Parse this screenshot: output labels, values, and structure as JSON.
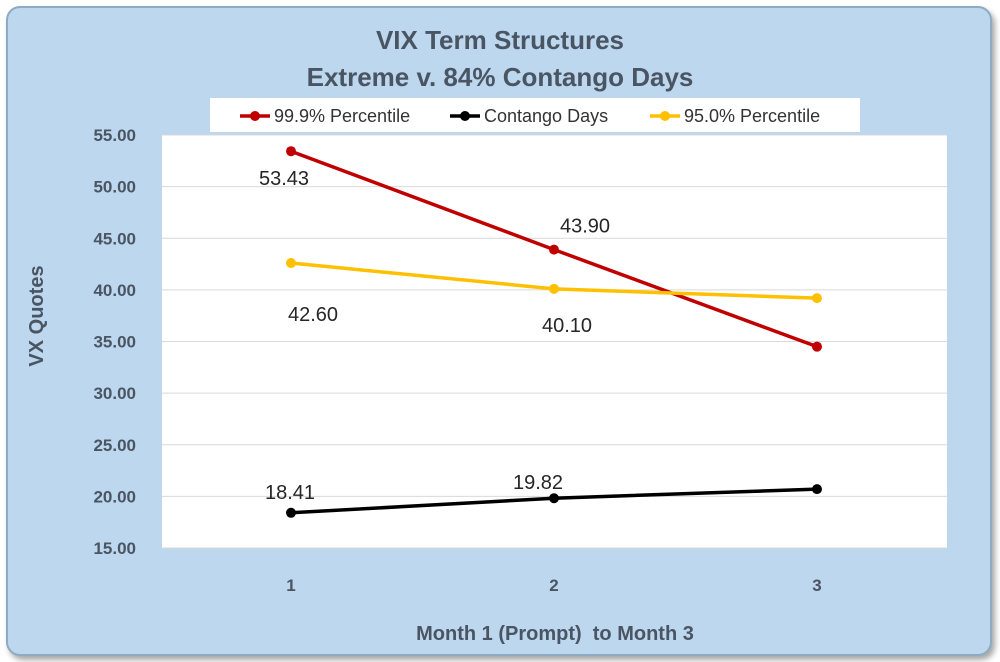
{
  "chart_data": {
    "type": "line",
    "title": "VIX Term Structures",
    "subtitle": "Extreme v. 84% Contango Days",
    "xlabel": "Month 1 (Prompt)  to Month 3",
    "ylabel": "VX Quotes",
    "categories": [
      "1",
      "2",
      "3"
    ],
    "ylim": [
      15,
      55
    ],
    "yticks": [
      "15.00",
      "20.00",
      "25.00",
      "30.00",
      "35.00",
      "40.00",
      "45.00",
      "50.00",
      "55.00"
    ],
    "grid": true,
    "legend_position": "top",
    "series": [
      {
        "name": "99.9% Percentile",
        "color": "#c00000",
        "values": [
          53.43,
          43.9,
          34.5
        ],
        "labels": [
          "53.43",
          "43.90",
          null
        ]
      },
      {
        "name": "Contango Days",
        "color": "#000000",
        "values": [
          18.41,
          19.82,
          20.7
        ],
        "labels": [
          "18.41",
          "19.82",
          null
        ]
      },
      {
        "name": "95.0% Percentile",
        "color": "#ffc000",
        "values": [
          42.6,
          40.1,
          39.2
        ],
        "labels": [
          "42.60",
          "40.10",
          null
        ]
      }
    ]
  }
}
